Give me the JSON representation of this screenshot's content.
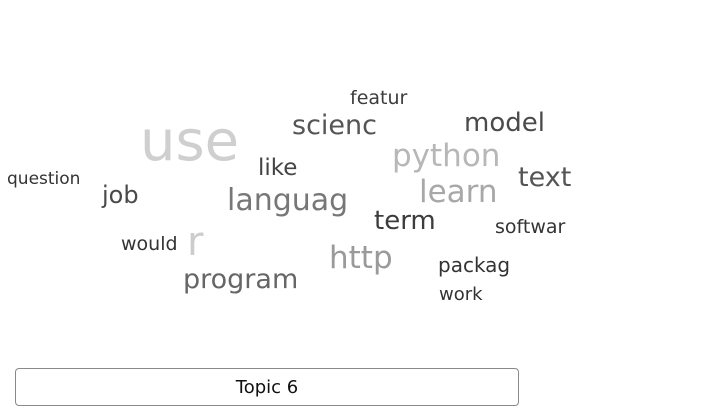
{
  "word_cloud": {
    "words": [
      {
        "text": "featur",
        "color": "#3c3c3c"
      },
      {
        "text": "use",
        "color": "#cfcfcf"
      },
      {
        "text": "scienc",
        "color": "#555555"
      },
      {
        "text": "model",
        "color": "#4a4a4a"
      },
      {
        "text": "python",
        "color": "#b7b7b7"
      },
      {
        "text": "like",
        "color": "#444444"
      },
      {
        "text": "question",
        "color": "#333333"
      },
      {
        "text": "text",
        "color": "#555555"
      },
      {
        "text": "job",
        "color": "#4a4a4a"
      },
      {
        "text": "languag",
        "color": "#777777"
      },
      {
        "text": "learn",
        "color": "#a8a8a8"
      },
      {
        "text": "term",
        "color": "#3c3c3c"
      },
      {
        "text": "softwar",
        "color": "#333333"
      },
      {
        "text": "would",
        "color": "#333333"
      },
      {
        "text": "r",
        "color": "#cccccc"
      },
      {
        "text": "http",
        "color": "#9a9a9a"
      },
      {
        "text": "packag",
        "color": "#333333"
      },
      {
        "text": "program",
        "color": "#666666"
      },
      {
        "text": "work",
        "color": "#333333"
      }
    ]
  },
  "topic_button": {
    "label": "Topic 6"
  }
}
